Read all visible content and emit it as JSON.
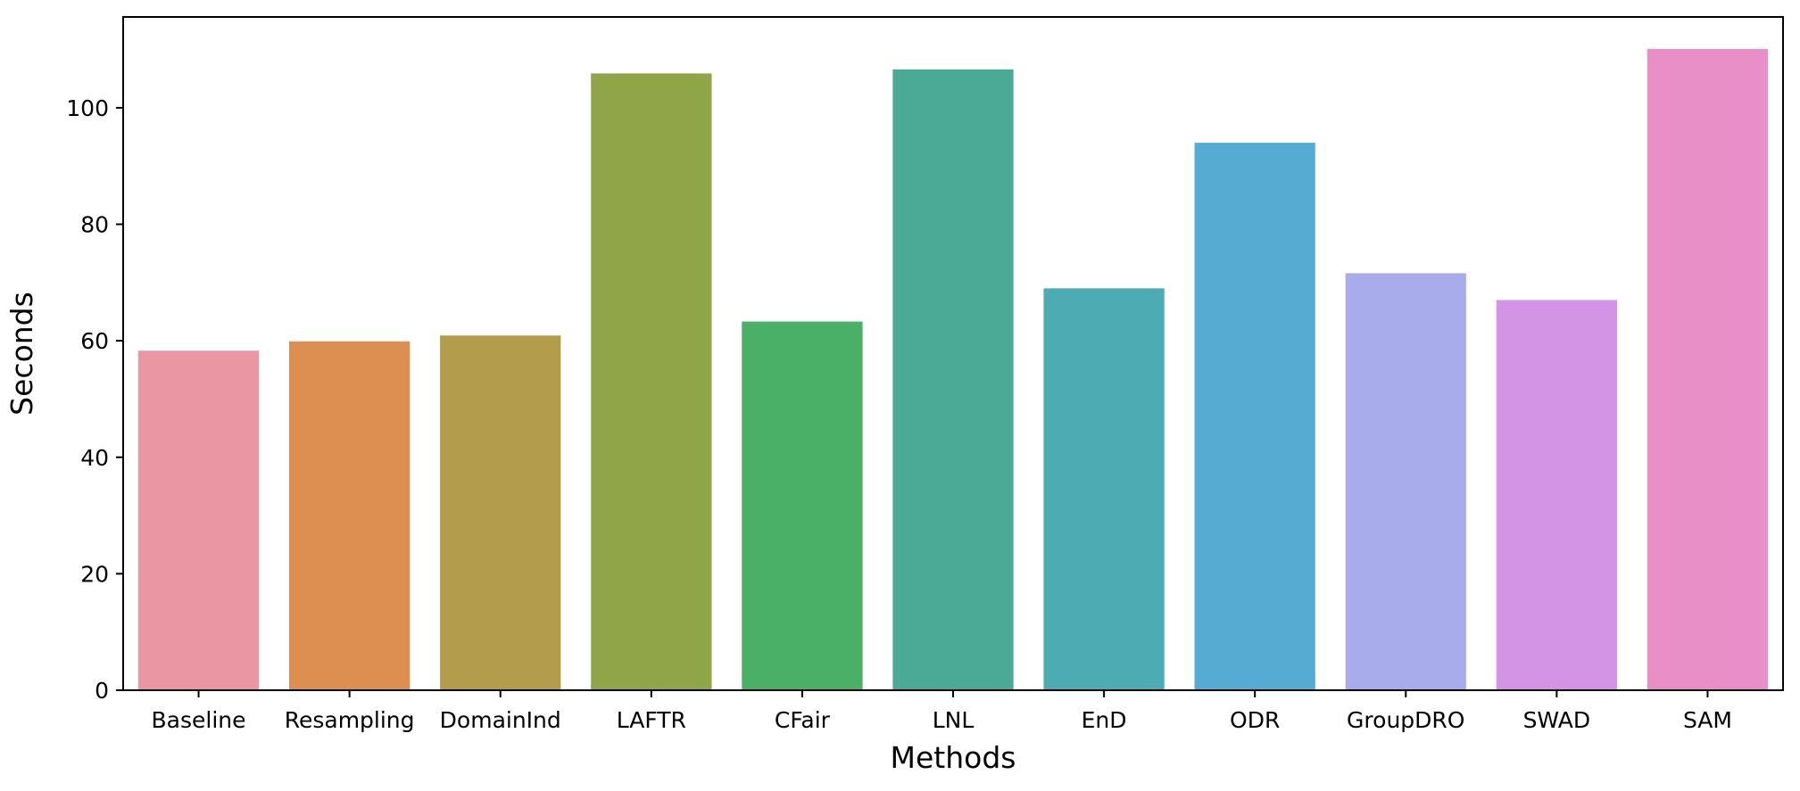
{
  "chart_data": {
    "type": "bar",
    "title": "",
    "xlabel": "Methods",
    "ylabel": "Seconds",
    "ylim": [
      0,
      115.6
    ],
    "yticks": [
      0,
      20,
      40,
      60,
      80,
      100
    ],
    "grid": false,
    "categories": [
      "Baseline",
      "Resampling",
      "DomainInd",
      "LAFTR",
      "CFair",
      "LNL",
      "EnD",
      "ODR",
      "GroupDRO",
      "SWAD",
      "SAM"
    ],
    "values": [
      58.3,
      59.9,
      60.9,
      105.9,
      63.3,
      106.6,
      69.0,
      94.0,
      71.6,
      67.0,
      110.1
    ],
    "colors": [
      "#ea96a3",
      "#dc8f51",
      "#b39c4b",
      "#8fa547",
      "#4aaf67",
      "#4aaa96",
      "#4dabb3",
      "#56abd3",
      "#a9aceb",
      "#d494e6",
      "#e88fc7"
    ]
  }
}
